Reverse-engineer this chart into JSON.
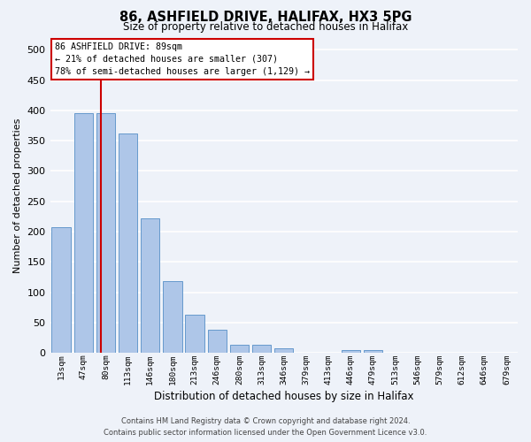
{
  "title_line1": "86, ASHFIELD DRIVE, HALIFAX, HX3 5PG",
  "title_line2": "Size of property relative to detached houses in Halifax",
  "xlabel": "Distribution of detached houses by size in Halifax",
  "ylabel": "Number of detached properties",
  "bar_labels": [
    "13sqm",
    "47sqm",
    "80sqm",
    "113sqm",
    "146sqm",
    "180sqm",
    "213sqm",
    "246sqm",
    "280sqm",
    "313sqm",
    "346sqm",
    "379sqm",
    "413sqm",
    "446sqm",
    "479sqm",
    "513sqm",
    "546sqm",
    "579sqm",
    "612sqm",
    "646sqm",
    "679sqm"
  ],
  "bar_values": [
    207,
    395,
    395,
    362,
    222,
    118,
    63,
    38,
    14,
    14,
    7,
    0,
    0,
    5,
    5,
    0,
    0,
    0,
    0,
    0,
    0
  ],
  "bar_color": "#aec6e8",
  "bar_edge_color": "#6699cc",
  "property_bar_index": 2,
  "annotation_text": "86 ASHFIELD DRIVE: 89sqm\n← 21% of detached houses are smaller (307)\n78% of semi-detached houses are larger (1,129) →",
  "annotation_box_color": "#ffffff",
  "annotation_box_edge": "#cc0000",
  "vline_color": "#cc0000",
  "background_color": "#eef2f9",
  "grid_color": "#ffffff",
  "ylim": [
    0,
    520
  ],
  "yticks": [
    0,
    50,
    100,
    150,
    200,
    250,
    300,
    350,
    400,
    450,
    500
  ],
  "footer_line1": "Contains HM Land Registry data © Crown copyright and database right 2024.",
  "footer_line2": "Contains public sector information licensed under the Open Government Licence v3.0."
}
